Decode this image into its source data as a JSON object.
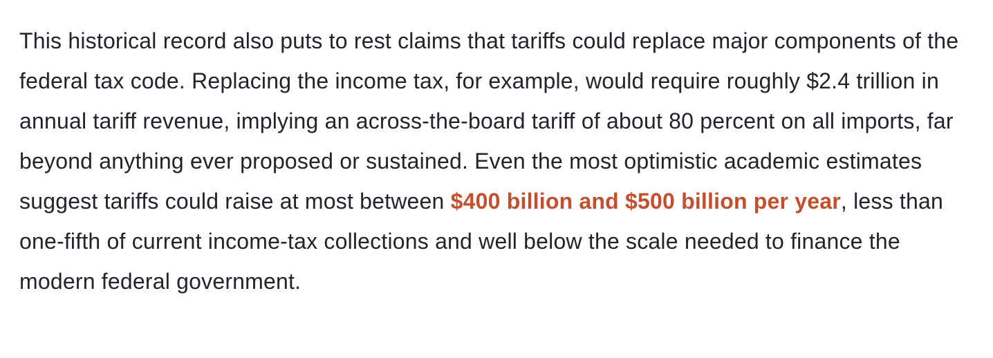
{
  "page": {
    "background_color": "#ffffff",
    "body_text_color": "#21242a",
    "highlight_color": "#c2502e"
  },
  "paragraph": {
    "text_before": "This historical record also puts to rest claims that tariffs could replace major components of the federal tax code. Replacing the income tax, for example, would require roughly $2.4 trillion in annual tariff revenue, implying an across-the-board tariff of about 80 percent on all imports, far beyond anything ever proposed or sustained. Even the most optimistic academic estimates suggest tariffs could raise at most between ",
    "highlight": "$400 billion and $500 billion per year",
    "text_after": ", less than one-fifth of current income-tax collections and well below the scale needed to finance the modern federal government."
  }
}
